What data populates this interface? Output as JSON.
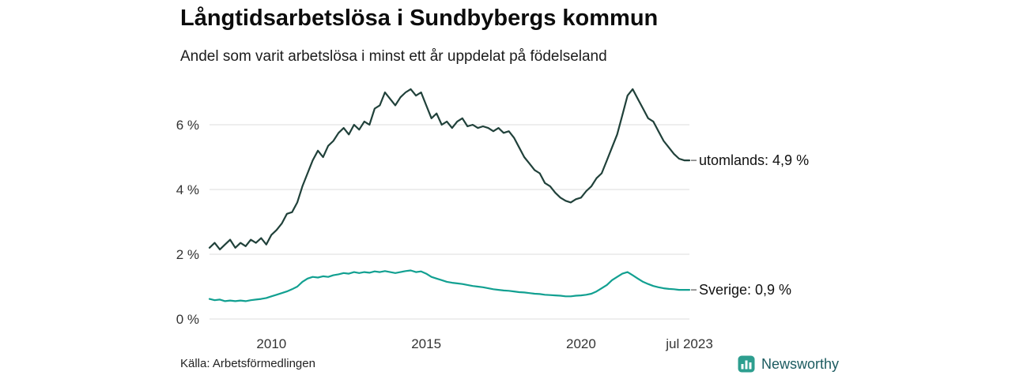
{
  "chart_data": {
    "type": "line",
    "title": "Långtidsarbetslösa i Sundbybergs kommun",
    "subtitle": "Andel som varit arbetslösa i minst ett år uppdelat på födelseland",
    "source": "Källa: Arbetsförmedlingen",
    "x_unit": "year",
    "x_start": 2008.0,
    "x_end": 2023.5,
    "ylim": [
      0,
      7.3
    ],
    "grid": "horizontal-only",
    "legend": "end-of-line-annotations",
    "background": "#ffffff",
    "gridline_color": "#dcdcdc",
    "axis_text_color": "#333333",
    "yticks": [
      {
        "value": 0,
        "label": "0 %"
      },
      {
        "value": 2,
        "label": "2 %"
      },
      {
        "value": 4,
        "label": "4 %"
      },
      {
        "value": 6,
        "label": "6 %"
      }
    ],
    "xticks": [
      {
        "value": 2010,
        "label": "2010"
      },
      {
        "value": 2015,
        "label": "2015"
      },
      {
        "value": 2020,
        "label": "2020"
      },
      {
        "value": 2023.5,
        "label": "jul 2023"
      }
    ],
    "series": [
      {
        "name": "utomlands",
        "label": "utomlands: 4,9 %",
        "last_value": 4.9,
        "color": "#20413a",
        "values": [
          2.2,
          2.35,
          2.15,
          2.3,
          2.45,
          2.2,
          2.35,
          2.25,
          2.45,
          2.35,
          2.5,
          2.3,
          2.6,
          2.75,
          2.95,
          3.25,
          3.3,
          3.6,
          4.1,
          4.5,
          4.9,
          5.2,
          5.0,
          5.35,
          5.5,
          5.75,
          5.9,
          5.7,
          6.0,
          5.85,
          6.1,
          6.0,
          6.5,
          6.6,
          7.0,
          6.8,
          6.6,
          6.85,
          7.0,
          7.1,
          6.9,
          7.0,
          6.6,
          6.2,
          6.35,
          6.0,
          6.1,
          5.9,
          6.1,
          6.2,
          5.95,
          6.0,
          5.9,
          5.95,
          5.9,
          5.8,
          5.9,
          5.75,
          5.8,
          5.6,
          5.3,
          5.0,
          4.8,
          4.6,
          4.5,
          4.2,
          4.1,
          3.9,
          3.75,
          3.65,
          3.6,
          3.7,
          3.75,
          3.95,
          4.1,
          4.35,
          4.5,
          4.9,
          5.3,
          5.7,
          6.3,
          6.9,
          7.1,
          6.8,
          6.5,
          6.2,
          6.1,
          5.8,
          5.5,
          5.3,
          5.1,
          4.95,
          4.9,
          4.9
        ]
      },
      {
        "name": "sverige",
        "label": "Sverige: 0,9 %",
        "last_value": 0.9,
        "color": "#12a091",
        "values": [
          0.62,
          0.58,
          0.6,
          0.55,
          0.57,
          0.55,
          0.57,
          0.55,
          0.58,
          0.6,
          0.62,
          0.65,
          0.7,
          0.75,
          0.8,
          0.85,
          0.92,
          1.0,
          1.15,
          1.25,
          1.3,
          1.28,
          1.32,
          1.3,
          1.35,
          1.38,
          1.42,
          1.4,
          1.45,
          1.42,
          1.45,
          1.43,
          1.47,
          1.45,
          1.48,
          1.45,
          1.42,
          1.45,
          1.48,
          1.5,
          1.45,
          1.47,
          1.4,
          1.3,
          1.25,
          1.2,
          1.15,
          1.12,
          1.1,
          1.08,
          1.05,
          1.02,
          1.0,
          0.98,
          0.95,
          0.92,
          0.9,
          0.88,
          0.87,
          0.85,
          0.83,
          0.82,
          0.8,
          0.78,
          0.77,
          0.75,
          0.74,
          0.73,
          0.72,
          0.7,
          0.7,
          0.72,
          0.73,
          0.75,
          0.78,
          0.85,
          0.95,
          1.05,
          1.2,
          1.3,
          1.4,
          1.45,
          1.35,
          1.25,
          1.15,
          1.08,
          1.02,
          0.98,
          0.95,
          0.93,
          0.92,
          0.9,
          0.9,
          0.9
        ]
      }
    ]
  },
  "branding": {
    "name": "Newsworthy",
    "icon": "bar-chart-badge-icon",
    "icon_color": "#2d9e8f",
    "text_color": "#1c5b60"
  }
}
